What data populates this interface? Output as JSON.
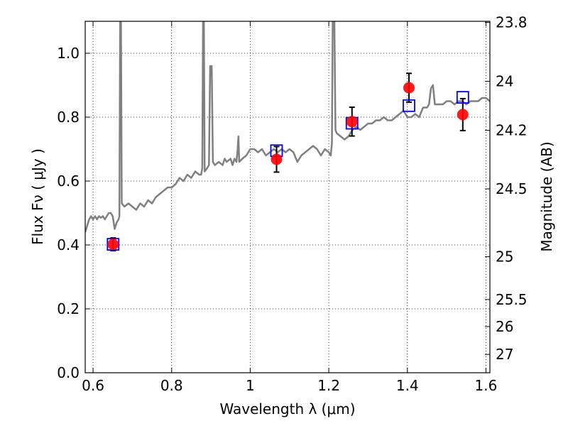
{
  "chart_data": {
    "type": "line",
    "xlabel": "Wavelength  λ (μm)",
    "ylabel": "Flux  Fν  ( μJy )",
    "y2label": "Magnitude (AB)",
    "xlim": [
      0.58,
      1.61
    ],
    "ylim": [
      0.0,
      1.1
    ],
    "grid": true,
    "x_ticks": [
      0.6,
      0.8,
      1.0,
      1.2,
      1.4,
      1.6
    ],
    "x_tick_labels": [
      "0.6",
      "0.8",
      "1",
      "1.2",
      "1.4",
      "1.6"
    ],
    "y_ticks": [
      0.0,
      0.2,
      0.4,
      0.6,
      0.8,
      1.0
    ],
    "y_tick_labels": [
      "0.0",
      "0.2",
      "0.4",
      "0.6",
      "0.8",
      "1.0"
    ],
    "y2_ticks": [
      {
        "label": "23.8",
        "mag": 23.8
      },
      {
        "label": "24",
        "mag": 24.0
      },
      {
        "label": "24.2",
        "mag": 24.2
      },
      {
        "label": "24.5",
        "mag": 24.5
      },
      {
        "label": "25",
        "mag": 25.0
      },
      {
        "label": "25.5",
        "mag": 25.5
      },
      {
        "label": "26",
        "mag": 26.0
      },
      {
        "label": "27",
        "mag": 27.0
      }
    ],
    "colors": {
      "model": "#808080",
      "observed": "#ff0000",
      "model_phot": "#0000ff",
      "errorbar": "#000000",
      "grid": "#000000"
    },
    "series": [
      {
        "kind": "model_spectrum",
        "points": [
          [
            0.58,
            0.44
          ],
          [
            0.585,
            0.46
          ],
          [
            0.59,
            0.48
          ],
          [
            0.595,
            0.49
          ],
          [
            0.6,
            0.48
          ],
          [
            0.605,
            0.49
          ],
          [
            0.61,
            0.48
          ],
          [
            0.615,
            0.49
          ],
          [
            0.62,
            0.485
          ],
          [
            0.625,
            0.49
          ],
          [
            0.63,
            0.48
          ],
          [
            0.635,
            0.49
          ],
          [
            0.64,
            0.5
          ],
          [
            0.645,
            0.5
          ],
          [
            0.65,
            0.49
          ],
          [
            0.655,
            0.45
          ],
          [
            0.66,
            0.47
          ],
          [
            0.665,
            0.48
          ],
          [
            0.667,
            0.49
          ],
          [
            0.669,
            1.12
          ],
          [
            0.671,
            1.12
          ],
          [
            0.673,
            0.53
          ],
          [
            0.68,
            0.52
          ],
          [
            0.69,
            0.53
          ],
          [
            0.7,
            0.52
          ],
          [
            0.71,
            0.51
          ],
          [
            0.72,
            0.53
          ],
          [
            0.73,
            0.52
          ],
          [
            0.74,
            0.54
          ],
          [
            0.75,
            0.53
          ],
          [
            0.76,
            0.55
          ],
          [
            0.77,
            0.56
          ],
          [
            0.78,
            0.57
          ],
          [
            0.79,
            0.58
          ],
          [
            0.8,
            0.58
          ],
          [
            0.81,
            0.59
          ],
          [
            0.82,
            0.61
          ],
          [
            0.83,
            0.6
          ],
          [
            0.84,
            0.62
          ],
          [
            0.85,
            0.61
          ],
          [
            0.86,
            0.63
          ],
          [
            0.87,
            0.62
          ],
          [
            0.875,
            0.62
          ],
          [
            0.878,
            0.64
          ],
          [
            0.88,
            1.12
          ],
          [
            0.882,
            1.12
          ],
          [
            0.884,
            0.63
          ],
          [
            0.89,
            0.64
          ],
          [
            0.895,
            0.65
          ],
          [
            0.898,
            0.96
          ],
          [
            0.902,
            0.96
          ],
          [
            0.905,
            0.66
          ],
          [
            0.91,
            0.65
          ],
          [
            0.92,
            0.66
          ],
          [
            0.93,
            0.65
          ],
          [
            0.935,
            0.67
          ],
          [
            0.94,
            0.66
          ],
          [
            0.95,
            0.67
          ],
          [
            0.955,
            0.65
          ],
          [
            0.96,
            0.67
          ],
          [
            0.965,
            0.66
          ],
          [
            0.968,
            0.7
          ],
          [
            0.97,
            0.74
          ],
          [
            0.972,
            0.66
          ],
          [
            0.98,
            0.67
          ],
          [
            0.99,
            0.68
          ],
          [
            1.0,
            0.7
          ],
          [
            1.01,
            0.7
          ],
          [
            1.02,
            0.69
          ],
          [
            1.03,
            0.7
          ],
          [
            1.04,
            0.68
          ],
          [
            1.05,
            0.69
          ],
          [
            1.06,
            0.7
          ],
          [
            1.07,
            0.69
          ],
          [
            1.08,
            0.7
          ],
          [
            1.09,
            0.69
          ],
          [
            1.1,
            0.7
          ],
          [
            1.11,
            0.69
          ],
          [
            1.12,
            0.66
          ],
          [
            1.13,
            0.68
          ],
          [
            1.14,
            0.69
          ],
          [
            1.15,
            0.7
          ],
          [
            1.16,
            0.71
          ],
          [
            1.17,
            0.7
          ],
          [
            1.18,
            0.68
          ],
          [
            1.19,
            0.7
          ],
          [
            1.2,
            0.69
          ],
          [
            1.205,
            0.68
          ],
          [
            1.208,
            0.72
          ],
          [
            1.21,
            1.12
          ],
          [
            1.214,
            1.12
          ],
          [
            1.217,
            0.76
          ],
          [
            1.22,
            0.75
          ],
          [
            1.23,
            0.74
          ],
          [
            1.24,
            0.73
          ],
          [
            1.25,
            0.74
          ],
          [
            1.26,
            0.76
          ],
          [
            1.27,
            0.77
          ],
          [
            1.28,
            0.76
          ],
          [
            1.29,
            0.77
          ],
          [
            1.3,
            0.78
          ],
          [
            1.31,
            0.78
          ],
          [
            1.32,
            0.79
          ],
          [
            1.33,
            0.79
          ],
          [
            1.34,
            0.8
          ],
          [
            1.35,
            0.79
          ],
          [
            1.36,
            0.79
          ],
          [
            1.37,
            0.8
          ],
          [
            1.38,
            0.81
          ],
          [
            1.39,
            0.82
          ],
          [
            1.395,
            0.81
          ],
          [
            1.4,
            0.8
          ],
          [
            1.41,
            0.8
          ],
          [
            1.42,
            0.81
          ],
          [
            1.43,
            0.8
          ],
          [
            1.44,
            0.83
          ],
          [
            1.45,
            0.83
          ],
          [
            1.455,
            0.84
          ],
          [
            1.46,
            0.89
          ],
          [
            1.465,
            0.9
          ],
          [
            1.47,
            0.84
          ],
          [
            1.48,
            0.84
          ],
          [
            1.49,
            0.84
          ],
          [
            1.5,
            0.85
          ],
          [
            1.51,
            0.85
          ],
          [
            1.52,
            0.84
          ],
          [
            1.53,
            0.85
          ],
          [
            1.54,
            0.85
          ],
          [
            1.55,
            0.84
          ],
          [
            1.56,
            0.85
          ],
          [
            1.57,
            0.85
          ],
          [
            1.58,
            0.85
          ],
          [
            1.59,
            0.86
          ],
          [
            1.6,
            0.86
          ],
          [
            1.61,
            0.85
          ]
        ]
      },
      {
        "kind": "observed",
        "points": [
          {
            "x": 0.651,
            "y": 0.402,
            "err": 0.02
          },
          {
            "x": 1.067,
            "y": 0.668,
            "err": 0.04
          },
          {
            "x": 1.259,
            "y": 0.786,
            "err": 0.045
          },
          {
            "x": 1.404,
            "y": 0.892,
            "err": 0.045
          },
          {
            "x": 1.541,
            "y": 0.808,
            "err": 0.05
          }
        ]
      },
      {
        "kind": "model_photometry",
        "points": [
          {
            "x": 0.651,
            "y": 0.402
          },
          {
            "x": 1.067,
            "y": 0.695
          },
          {
            "x": 1.259,
            "y": 0.781
          },
          {
            "x": 1.404,
            "y": 0.836
          },
          {
            "x": 1.541,
            "y": 0.862
          }
        ]
      }
    ]
  }
}
